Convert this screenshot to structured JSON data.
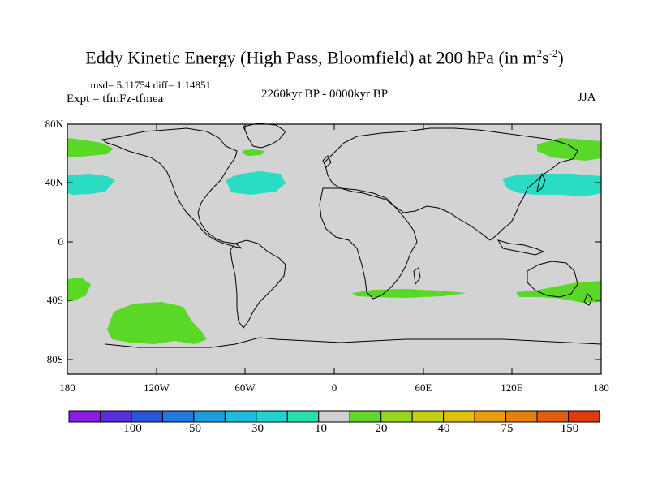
{
  "title": {
    "main": "Eddy Kinetic Energy (High Pass, Bloomfield) at 200 hPa (in m",
    "sup1": "2",
    "mid": "s",
    "sup2": "-2",
    "end": ")"
  },
  "stats": "rmsd= 5.11754 diff= 1.14851",
  "experiment": "Expt = tfmFz-tfmea",
  "period": "2260kyr BP - 0000kyr BP",
  "season": "JJA",
  "lat_labels": [
    "80N",
    "40N",
    "0",
    "40S",
    "80S"
  ],
  "lon_labels": [
    "180",
    "120W",
    "60W",
    "0",
    "60E",
    "120E",
    "180"
  ],
  "colorbar": {
    "colors": [
      "#8a1ce6",
      "#5a2de0",
      "#2a55d8",
      "#1e7ae0",
      "#1a9ee0",
      "#18bde0",
      "#1cd4d0",
      "#20e0b0",
      "#d0d0d0",
      "#62d826",
      "#98d618",
      "#c4d00e",
      "#e0c00a",
      "#e6a006",
      "#e68006",
      "#e65c08",
      "#e23a0c"
    ],
    "labels": [
      "-100",
      "-50",
      "-30",
      "-10",
      "20",
      "40",
      "75",
      "150"
    ]
  },
  "colors": {
    "background": "#d3d3d3",
    "positive_anomaly": "#5ad826",
    "negative_anomaly": "#2adcc4",
    "coastline": "#000000"
  }
}
